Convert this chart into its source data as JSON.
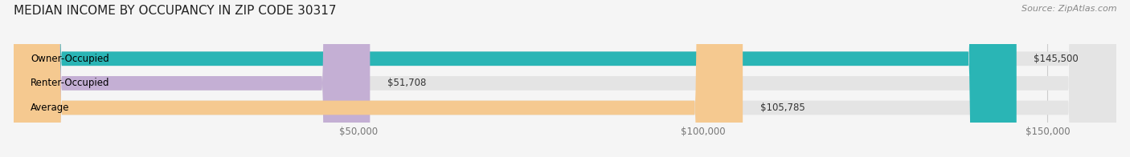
{
  "title": "MEDIAN INCOME BY OCCUPANCY IN ZIP CODE 30317",
  "source": "Source: ZipAtlas.com",
  "categories": [
    "Owner-Occupied",
    "Renter-Occupied",
    "Average"
  ],
  "values": [
    145500,
    51708,
    105785
  ],
  "labels": [
    "$145,500",
    "$51,708",
    "$105,785"
  ],
  "bar_colors": [
    "#2ab5b5",
    "#c4afd4",
    "#f5c990"
  ],
  "background_color": "#f5f5f5",
  "bar_bg_color": "#e4e4e4",
  "xlim": [
    0,
    160000
  ],
  "xticks": [
    50000,
    100000,
    150000
  ],
  "xtick_labels": [
    "$50,000",
    "$100,000",
    "$150,000"
  ],
  "title_fontsize": 11,
  "label_fontsize": 8.5,
  "source_fontsize": 8,
  "bar_height": 0.58
}
